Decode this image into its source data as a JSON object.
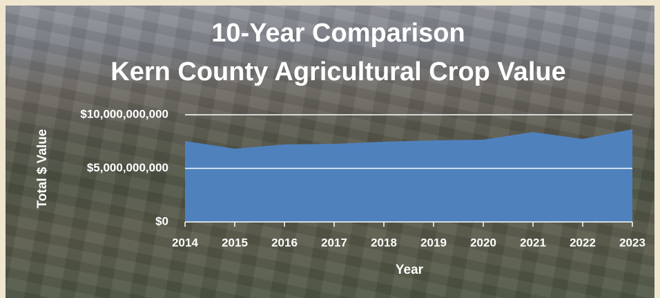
{
  "chart_data": {
    "type": "area",
    "title": "10-Year Comparison",
    "subtitle": "Kern County Agricultural Crop Value",
    "x_label": "Year",
    "y_label": "Total $ Value",
    "categories": [
      "2014",
      "2015",
      "2016",
      "2017",
      "2018",
      "2019",
      "2020",
      "2021",
      "2022",
      "2023"
    ],
    "values": [
      7550000000,
      6840000000,
      7230000000,
      7290000000,
      7480000000,
      7610000000,
      7680000000,
      8390000000,
      7740000000,
      8650000000
    ],
    "color": "#4f81bd",
    "ylim": [
      0,
      10000000000
    ],
    "yticks": [
      {
        "value": 0,
        "label": "$0"
      },
      {
        "value": 5000000000,
        "label": "$5,000,000,000"
      },
      {
        "value": 10000000000,
        "label": "$10,000,000,000"
      }
    ],
    "grid": true
  }
}
